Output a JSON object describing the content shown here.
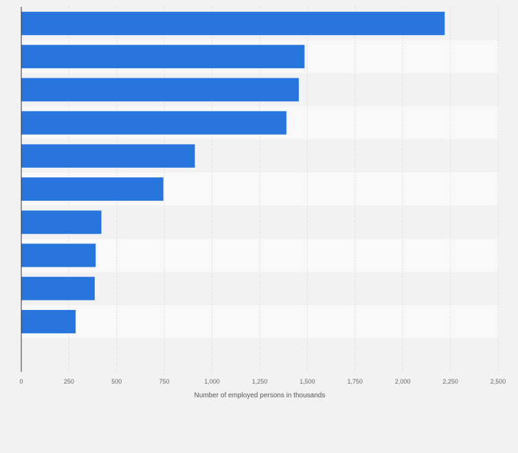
{
  "chart_data": {
    "type": "bar",
    "orientation": "horizontal",
    "title": "",
    "xlabel": "Number of employed persons in thousands",
    "ylabel": "",
    "categories": [
      "",
      "",
      "",
      "",
      "",
      "",
      "",
      "",
      "",
      ""
    ],
    "values": [
      2220,
      1485,
      1455,
      1390,
      910,
      745,
      420,
      390,
      385,
      285
    ],
    "xlim": [
      0,
      2500
    ],
    "ticks": [
      0,
      250,
      500,
      750,
      1000,
      1250,
      1500,
      1750,
      2000,
      2250,
      2500
    ],
    "tick_labels": [
      "0",
      "250",
      "500",
      "750",
      "1,000",
      "1,250",
      "1,500",
      "1,750",
      "2,000",
      "2,250",
      "2,500"
    ],
    "grid": true,
    "legend": "none"
  },
  "colors": {
    "bar": "#2876dd",
    "background": "#f2f2f2",
    "band_light": "#f9f9f9",
    "band_dark": "#f2f2f2",
    "grid": "#dcdcdc",
    "axis": "#333333"
  }
}
